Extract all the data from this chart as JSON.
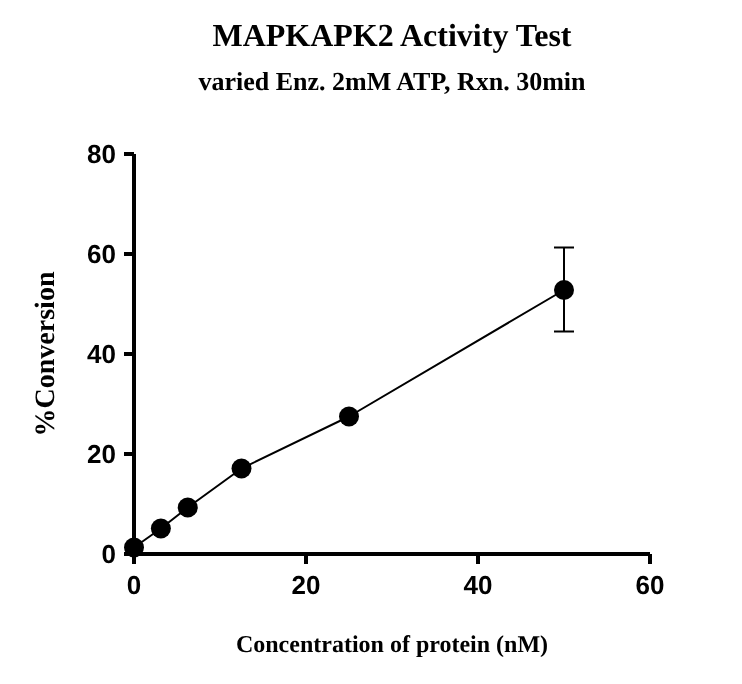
{
  "chart_data": {
    "type": "line",
    "title": "MAPKAPK2 Activity Test",
    "subtitle": "varied Enz. 2mM ATP, Rxn. 30min",
    "xlabel": "Concentration of protein (nM)",
    "ylabel": "%Conversion",
    "x": [
      0,
      3.125,
      6.25,
      12.5,
      25,
      50
    ],
    "series": [
      {
        "color": "#000000",
        "values": [
          1.3,
          5.1,
          9.3,
          17.1,
          27.5,
          52.8
        ],
        "errors": [
          null,
          null,
          null,
          null,
          null,
          [
            44.5,
            61.3
          ]
        ]
      }
    ],
    "xlim": [
      0,
      60
    ],
    "xticks": [
      0,
      20,
      40,
      60
    ],
    "ylim": [
      0,
      80
    ],
    "yticks": [
      0,
      20,
      40,
      60,
      80
    ],
    "marker": "circle",
    "line_style": "solid",
    "grid": false
  }
}
